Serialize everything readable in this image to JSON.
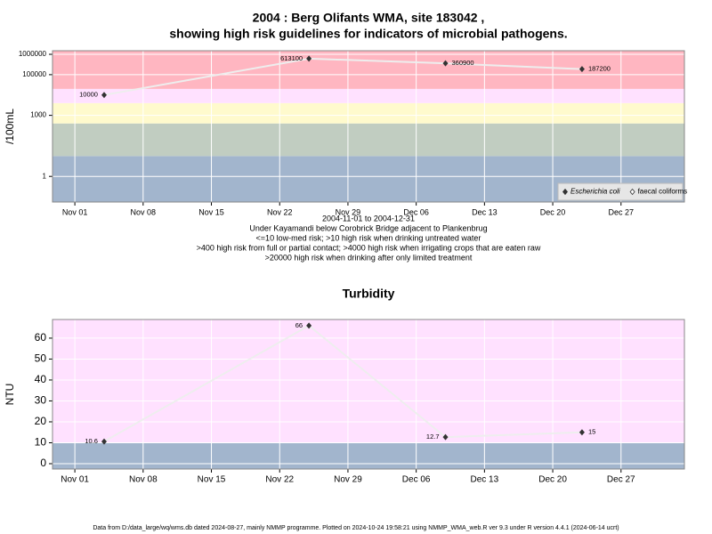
{
  "chart_data": [
    {
      "type": "line",
      "title": [
        "2004 : Berg Olifants WMA, site 183042 ,",
        "showing high risk guidelines for indicators of microbial pathogens."
      ],
      "ylabel": "/100mL",
      "xlabel": [
        "2004-11-01 to 2004-12-31",
        "Under Kayamandi below Corobrick Bridge adjacent to Plankenbrug",
        "<=10 low-med risk; >10 high risk when drinking untreated water",
        ">400 high risk from full or partial contact; >4000 high risk when irrigating crops that are eaten raw",
        ">20000 high risk when drinking after only limited treatment"
      ],
      "x": [
        "2004-11-04",
        "2004-11-25",
        "2004-12-09",
        "2004-12-23"
      ],
      "series": [
        {
          "name": "Escherichia coli",
          "color": "#333333",
          "values": [
            10000,
            613100,
            360900,
            187200
          ]
        },
        {
          "name": "faecal coliforms",
          "color": "#333333",
          "values": [
            null,
            null,
            null,
            null
          ]
        }
      ],
      "log_y": true,
      "ylim": [
        0.055,
        1500000
      ],
      "yticks": [
        1,
        1000,
        100000,
        1000000
      ],
      "xlim": [
        "2004-10-29T17:00",
        "2005-01-02T12:00"
      ],
      "xticks": [
        {
          "value": "2004-11-01",
          "label": "Nov 01"
        },
        {
          "value": "2004-11-08",
          "label": "Nov 08"
        },
        {
          "value": "2004-11-15",
          "label": "Nov 15"
        },
        {
          "value": "2004-11-22",
          "label": "Nov 22"
        },
        {
          "value": "2004-11-29",
          "label": "Nov 29"
        },
        {
          "value": "2004-12-06",
          "label": "Dec 06"
        },
        {
          "value": "2004-12-13",
          "label": "Dec 13"
        },
        {
          "value": "2004-12-20",
          "label": "Dec 20"
        },
        {
          "value": "2004-12-27",
          "label": "Dec 27"
        }
      ],
      "thresholds": [
        10,
        400,
        4000,
        20000
      ],
      "band_colors": [
        "#a2b5cd",
        "#c1cdc1",
        "#fffacd",
        "#ffe1ff",
        "#ffb6c1"
      ],
      "grid": true,
      "legend": "lower right"
    },
    {
      "type": "line",
      "title": [
        "Turbidity"
      ],
      "ylabel": "NTU",
      "x": [
        "2004-11-04",
        "2004-11-25",
        "2004-12-09",
        "2004-12-23"
      ],
      "series": [
        {
          "name": "Turbidity",
          "color": "#333333",
          "values": [
            10.6,
            66,
            12.7,
            15
          ]
        }
      ],
      "log_y": false,
      "ylim": [
        -2.55,
        68.9
      ],
      "yticks": [
        0,
        10,
        20,
        30,
        40,
        50,
        60
      ],
      "xlim": [
        "2004-10-29T17:00",
        "2005-01-02T12:00"
      ],
      "xticks": [
        {
          "value": "2004-11-01",
          "label": "Nov 01"
        },
        {
          "value": "2004-11-08",
          "label": "Nov 08"
        },
        {
          "value": "2004-11-15",
          "label": "Nov 15"
        },
        {
          "value": "2004-11-22",
          "label": "Nov 22"
        },
        {
          "value": "2004-11-29",
          "label": "Nov 29"
        },
        {
          "value": "2004-12-06",
          "label": "Dec 06"
        },
        {
          "value": "2004-12-13",
          "label": "Dec 13"
        },
        {
          "value": "2004-12-20",
          "label": "Dec 20"
        },
        {
          "value": "2004-12-27",
          "label": "Dec 27"
        }
      ],
      "thresholds": [
        10
      ],
      "band_colors": [
        "#a2b5cd",
        "#ffe1ff"
      ],
      "grid": true
    }
  ],
  "footer": "Data from D:/data_large/wq/wms.db dated 2024-08-27, mainly NMMP programme. Plotted on 2024-10-24 19:58:21 using NMMP_WMA_web.R ver 9.3 under R version 4.4.1 (2024-06-14 ucrt)"
}
